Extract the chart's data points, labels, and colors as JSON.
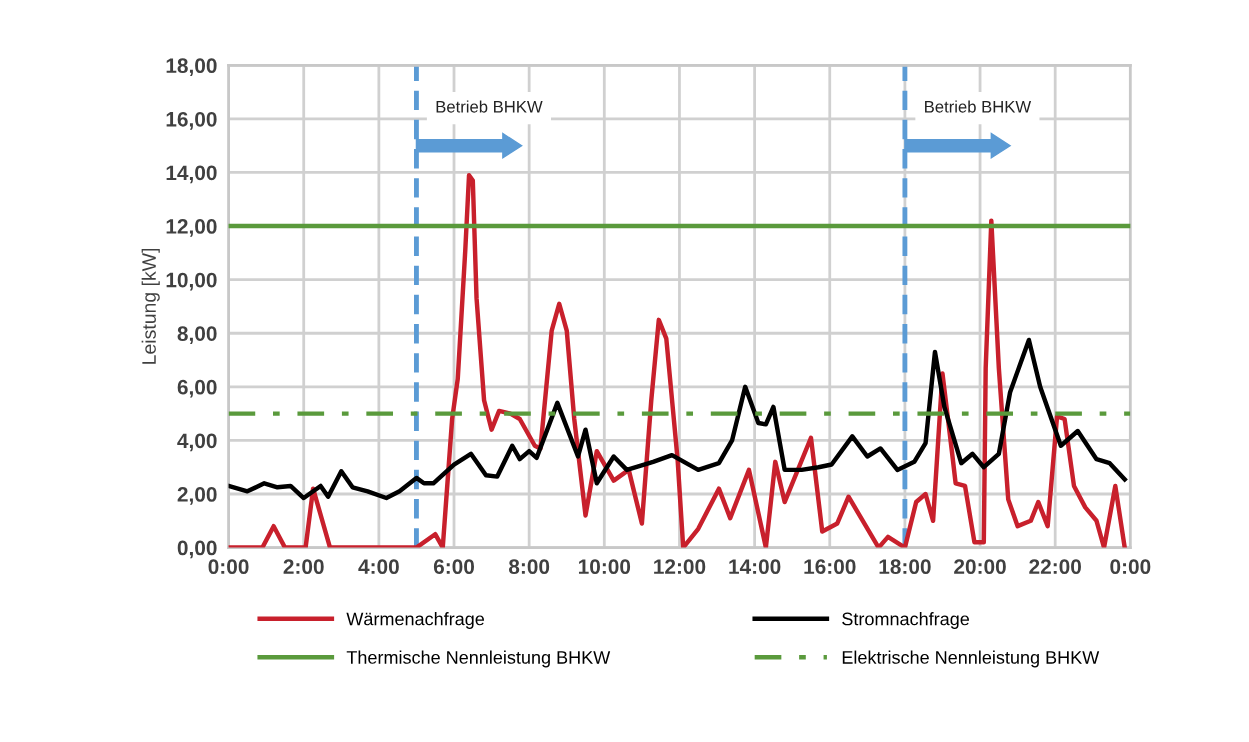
{
  "chart_data": {
    "type": "line",
    "ylabel": "Leistung [kW]",
    "xlim": [
      0,
      24
    ],
    "xticks": [
      {
        "value": 0,
        "label": "0:00"
      },
      {
        "value": 2,
        "label": "2:00"
      },
      {
        "value": 4,
        "label": "4:00"
      },
      {
        "value": 6,
        "label": "6:00"
      },
      {
        "value": 8,
        "label": "8:00"
      },
      {
        "value": 10,
        "label": "10:00"
      },
      {
        "value": 12,
        "label": "12:00"
      },
      {
        "value": 14,
        "label": "14:00"
      },
      {
        "value": 16,
        "label": "16:00"
      },
      {
        "value": 18,
        "label": "18:00"
      },
      {
        "value": 20,
        "label": "20:00"
      },
      {
        "value": 22,
        "label": "22:00"
      },
      {
        "value": 24,
        "label": "0:00"
      }
    ],
    "ylim": [
      0,
      18
    ],
    "yticks": [
      {
        "value": 0,
        "label": "0,00"
      },
      {
        "value": 2,
        "label": "2,00"
      },
      {
        "value": 4,
        "label": "4,00"
      },
      {
        "value": 6,
        "label": "6,00"
      },
      {
        "value": 8,
        "label": "8,00"
      },
      {
        "value": 10,
        "label": "10,00"
      },
      {
        "value": 12,
        "label": "12,00"
      },
      {
        "value": 14,
        "label": "14,00"
      },
      {
        "value": 16,
        "label": "16,00"
      },
      {
        "value": 18,
        "label": "18,00"
      }
    ],
    "grid": true,
    "legend": "bottom",
    "marker": "none",
    "series": [
      {
        "name": "Wärmenachfrage",
        "color": "#c8202c",
        "line_style": "solid",
        "x": [
          0,
          0.9,
          1.2,
          1.5,
          2.05,
          2.25,
          2.7,
          5.0,
          5.5,
          5.7,
          5.95,
          6.1,
          6.3,
          6.4,
          6.5,
          6.6,
          6.8,
          7.0,
          7.2,
          7.5,
          7.75,
          8.15,
          8.3,
          8.6,
          8.8,
          9.0,
          9.2,
          9.5,
          9.8,
          10.25,
          10.65,
          11.0,
          11.25,
          11.45,
          11.65,
          11.95,
          12.1,
          12.5,
          13.05,
          13.35,
          13.85,
          14.3,
          14.55,
          14.8,
          15.5,
          15.8,
          16.2,
          16.5,
          17.3,
          17.55,
          18.0,
          18.3,
          18.55,
          18.75,
          19.0,
          19.25,
          19.35,
          19.6,
          19.85,
          20.1,
          20.15,
          20.3,
          20.5,
          20.75,
          21.0,
          21.35,
          21.55,
          21.8,
          22.05,
          22.25,
          22.5,
          22.8,
          23.1,
          23.3,
          23.6,
          23.85
        ],
        "values": [
          0,
          0,
          0.8,
          0,
          0,
          2.2,
          0,
          0,
          0.5,
          0,
          4.8,
          6.3,
          11.1,
          13.9,
          13.7,
          9.3,
          5.5,
          4.4,
          5.1,
          5.0,
          4.8,
          3.8,
          3.7,
          8.1,
          9.1,
          8.1,
          4.8,
          1.2,
          3.6,
          2.5,
          2.9,
          0.9,
          5.5,
          8.5,
          7.8,
          3.3,
          0,
          0.7,
          2.2,
          1.1,
          2.9,
          0,
          3.2,
          1.7,
          4.1,
          0.6,
          0.9,
          1.9,
          0,
          0.4,
          0,
          1.7,
          2.0,
          1.0,
          6.5,
          3.6,
          2.4,
          2.3,
          0.2,
          0.2,
          6.7,
          12.2,
          6.7,
          1.8,
          0.8,
          1.0,
          1.7,
          0.8,
          4.9,
          4.8,
          2.3,
          1.5,
          1.0,
          0,
          2.3,
          0
        ]
      },
      {
        "name": "Stromnachfrage",
        "color": "#000000",
        "line_style": "solid",
        "x": [
          0,
          0.5,
          0.95,
          1.3,
          1.65,
          2.0,
          2.45,
          2.65,
          3.0,
          3.3,
          3.7,
          4.2,
          4.55,
          5.0,
          5.2,
          5.45,
          6.0,
          6.45,
          6.85,
          7.15,
          7.55,
          7.75,
          8.0,
          8.2,
          8.75,
          9.3,
          9.5,
          9.8,
          10.25,
          10.6,
          11.3,
          11.8,
          12.5,
          13.05,
          13.4,
          13.75,
          14.1,
          14.3,
          14.5,
          14.8,
          15.25,
          15.7,
          16.05,
          16.6,
          17.0,
          17.35,
          17.8,
          18.25,
          18.55,
          18.8,
          19.05,
          19.5,
          19.8,
          20.1,
          20.5,
          20.8,
          21.3,
          21.6,
          22.15,
          22.6,
          23.1,
          23.45,
          23.85
        ],
        "values": [
          2.3,
          2.1,
          2.4,
          2.25,
          2.3,
          1.85,
          2.3,
          1.9,
          2.85,
          2.25,
          2.1,
          1.85,
          2.1,
          2.6,
          2.4,
          2.4,
          3.1,
          3.5,
          2.7,
          2.65,
          3.8,
          3.3,
          3.6,
          3.35,
          5.4,
          3.4,
          4.4,
          2.4,
          3.4,
          2.9,
          3.2,
          3.45,
          2.9,
          3.15,
          4.0,
          6.0,
          4.65,
          4.6,
          5.25,
          2.9,
          2.9,
          3.0,
          3.1,
          4.15,
          3.4,
          3.7,
          2.9,
          3.2,
          3.9,
          7.3,
          5.25,
          3.15,
          3.5,
          3.0,
          3.5,
          5.8,
          7.75,
          6.0,
          3.8,
          4.35,
          3.3,
          3.15,
          2.55
        ]
      },
      {
        "name": "Thermische Nennleistung BHKW",
        "color": "#5a9a3c",
        "line_style": "solid",
        "x": [
          0,
          24
        ],
        "values": [
          12,
          12
        ]
      },
      {
        "name": "Elektrische Nennleistung BHKW",
        "color": "#5a9a3c",
        "line_style": "dashdot",
        "x": [
          0,
          24
        ],
        "values": [
          5,
          5
        ]
      }
    ],
    "ref_lines": [
      {
        "axis": "x",
        "value": 5,
        "color": "#5b9bd5",
        "line_style": "dashed"
      },
      {
        "axis": "x",
        "value": 18,
        "color": "#5b9bd5",
        "line_style": "dashed"
      }
    ],
    "annotations": [
      {
        "text": "Betrieb BHKW",
        "x": 5,
        "y": 16.4
      },
      {
        "text": "Betrieb BHKW",
        "x": 18,
        "y": 16.4
      }
    ]
  }
}
